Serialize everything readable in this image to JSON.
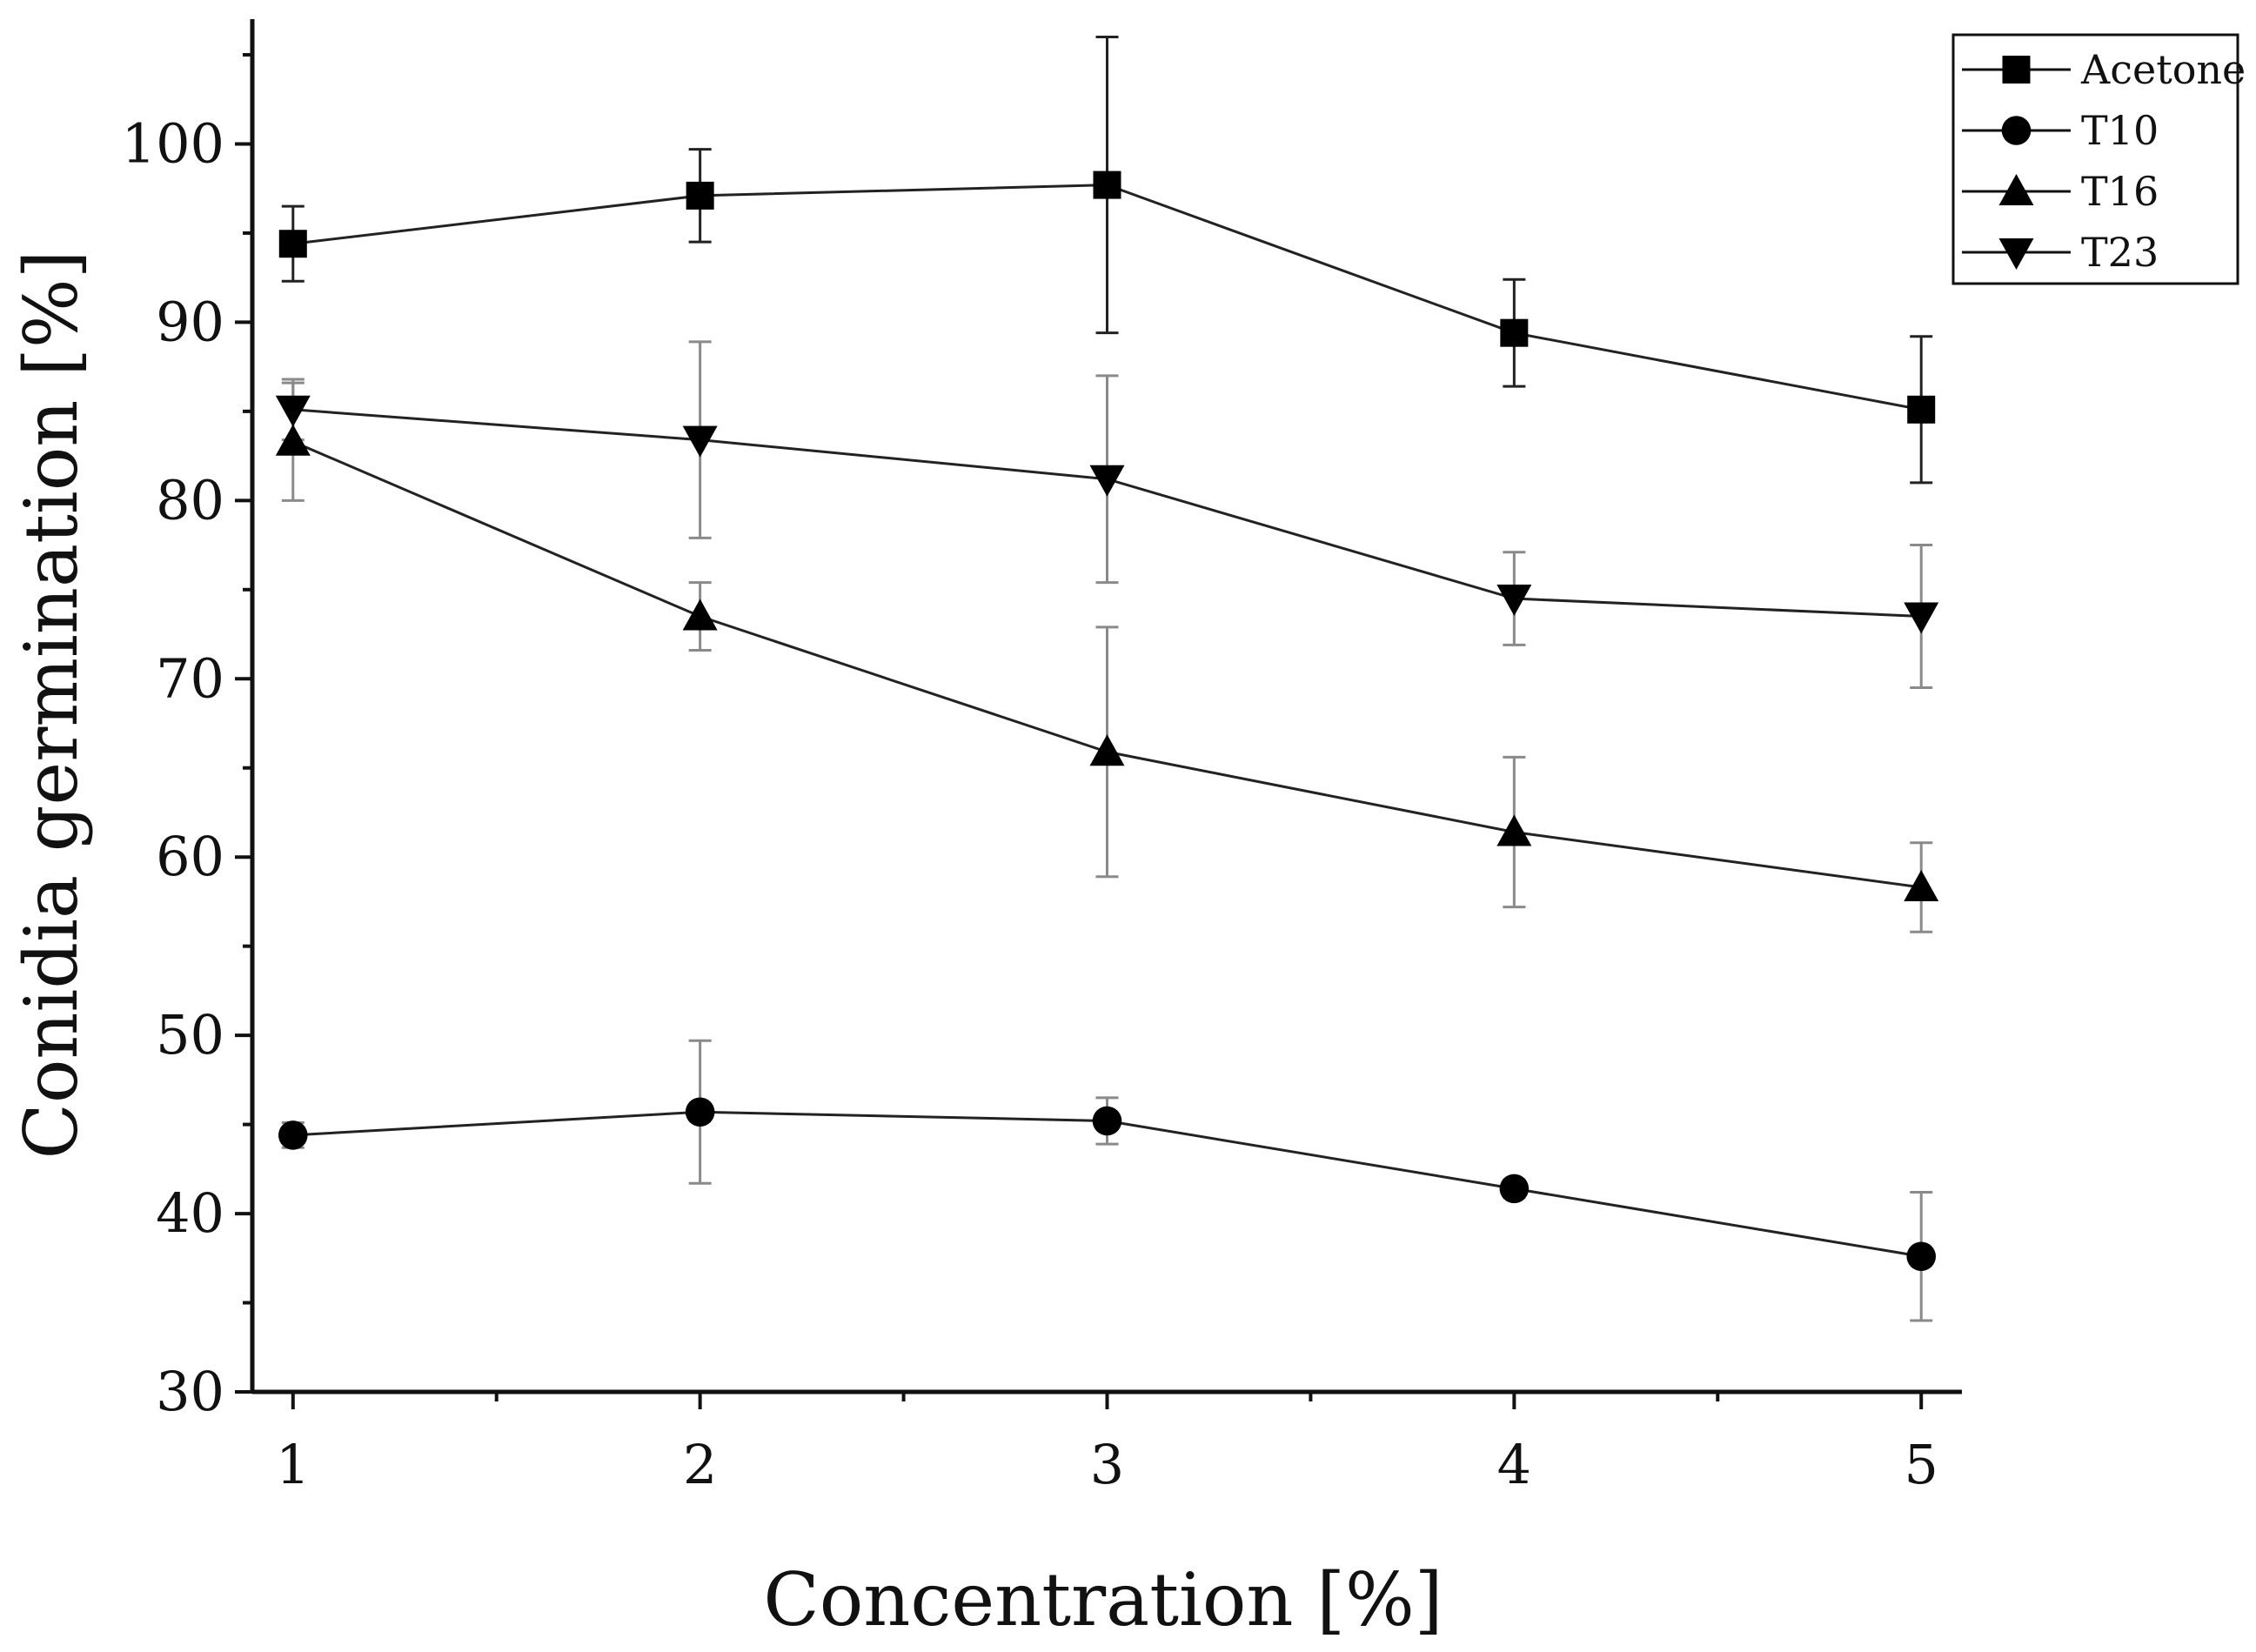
{
  "chart_data": {
    "type": "line",
    "title": "",
    "xlabel": "Concentration [%]",
    "ylabel": "Conidia germination [%]",
    "xlim": [
      0.9,
      5.1
    ],
    "ylim": [
      30,
      107
    ],
    "x_ticks": [
      1,
      2,
      3,
      4,
      5
    ],
    "y_ticks": [
      30,
      40,
      50,
      60,
      70,
      80,
      90,
      100
    ],
    "x": [
      1,
      2,
      3,
      4,
      5
    ],
    "grid": false,
    "legend_position": "top-right",
    "series": [
      {
        "name": "Acetone",
        "marker": "square",
        "errorbar_color": "#222222",
        "values": [
          94.4,
          97.1,
          97.7,
          89.4,
          85.1
        ],
        "errors": [
          2.1,
          2.6,
          8.3,
          3.0,
          4.1
        ]
      },
      {
        "name": "T10",
        "marker": "circle",
        "errorbar_color": "#8a8a8a",
        "values": [
          44.4,
          45.7,
          45.2,
          41.4,
          37.6
        ],
        "errors": [
          0.7,
          4.0,
          1.3,
          0.5,
          3.6
        ]
      },
      {
        "name": "T16",
        "marker": "triangle-up",
        "errorbar_color": "#8a8a8a",
        "values": [
          83.3,
          73.5,
          65.9,
          61.4,
          58.3
        ],
        "errors": [
          3.3,
          1.9,
          7.0,
          4.2,
          2.5
        ]
      },
      {
        "name": "T23",
        "marker": "triangle-down",
        "errorbar_color": "#8a8a8a",
        "values": [
          85.1,
          83.4,
          81.2,
          74.5,
          73.5
        ],
        "errors": [
          1.7,
          5.5,
          5.8,
          2.6,
          4.0
        ]
      }
    ]
  }
}
